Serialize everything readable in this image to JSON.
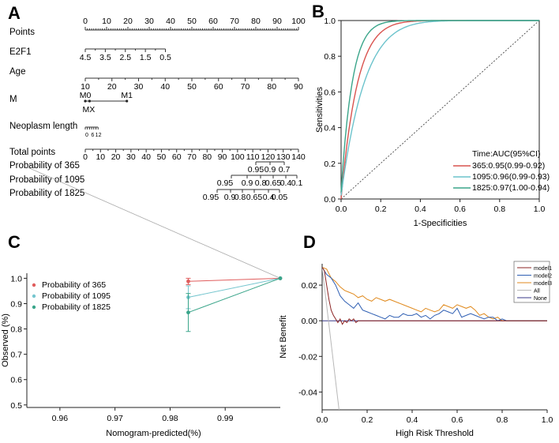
{
  "panels": {
    "a": "A",
    "b": "B",
    "c": "C",
    "d": "D"
  },
  "chart_data": [
    {
      "id": "A",
      "type": "table",
      "title": "Nomogram",
      "rows": [
        {
          "key": "points",
          "label": "Points",
          "ticks": [
            "0",
            "10",
            "20",
            "30",
            "40",
            "50",
            "60",
            "70",
            "80",
            "90",
            "100"
          ]
        },
        {
          "key": "e2f1",
          "label": "E2F1",
          "ticks": [
            "4.5",
            "3.5",
            "2.5",
            "1.5",
            "0.5"
          ]
        },
        {
          "key": "age",
          "label": "Age",
          "ticks": [
            "10",
            "20",
            "30",
            "40",
            "50",
            "60",
            "70",
            "80",
            "90"
          ]
        },
        {
          "key": "m",
          "label": "M",
          "ticks": [
            "M0",
            "M1",
            "MX"
          ]
        },
        {
          "key": "neo",
          "label": "Neoplasm length",
          "ticks": [
            "0",
            "6",
            "12"
          ]
        },
        {
          "key": "total",
          "label": "Total points",
          "ticks": [
            "0",
            "10",
            "20",
            "30",
            "40",
            "50",
            "60",
            "70",
            "80",
            "90",
            "100",
            "110",
            "120",
            "130",
            "140"
          ]
        },
        {
          "key": "p365",
          "label": "Probability of 365",
          "ticks": [
            "0.95",
            "0.9",
            "0.7"
          ]
        },
        {
          "key": "p1095",
          "label": "Probability of 1095",
          "ticks": [
            "0.95",
            "0.9",
            "0.8",
            "0.65",
            "0.4",
            "0.1"
          ]
        },
        {
          "key": "p1825",
          "label": "Probability of 1825",
          "ticks": [
            "0.95",
            "0.9",
            "0.8",
            "0.65",
            "0.4",
            "0.05"
          ]
        }
      ]
    },
    {
      "id": "B",
      "type": "line",
      "xlabel": "1-Specificities",
      "ylabel": "Sensitivities",
      "xlim": [
        0,
        1
      ],
      "ylim": [
        0,
        1
      ],
      "xticks": [
        "0.0",
        "0.2",
        "0.4",
        "0.6",
        "0.8",
        "1.0"
      ],
      "yticks": [
        "0.0",
        "0.2",
        "0.4",
        "0.6",
        "0.8",
        "1.0"
      ],
      "legend_title": "Time:AUC(95%CI)",
      "legend_position": "bottom-right",
      "series": [
        {
          "name": "365:0.95(0.99-0.92)",
          "color": "#d9534f",
          "k": 5.5
        },
        {
          "name": "1095:0.96(0.99-0.93)",
          "color": "#6cc3cc",
          "k": 3.8
        },
        {
          "name": "1825:0.97(1.00-0.94)",
          "color": "#3aa58a",
          "k": 8.0
        }
      ]
    },
    {
      "id": "C",
      "type": "line",
      "xlabel": "Nomogram-predicted(%)",
      "ylabel": "Observed (%)",
      "xlim": [
        0.954,
        1.0
      ],
      "ylim": [
        0.49,
        1.02
      ],
      "xticks": [
        "0.96",
        "0.97",
        "0.98",
        "0.99"
      ],
      "xtick_values": [
        0.96,
        0.97,
        0.98,
        0.99
      ],
      "yticks": [
        "0.5",
        "0.6",
        "0.7",
        "0.8",
        "0.9",
        "1.0"
      ],
      "ytick_values": [
        0.5,
        0.6,
        0.7,
        0.8,
        0.9,
        1.0
      ],
      "legend_position": "top-left",
      "series": [
        {
          "name": "Probability of 365",
          "color": "#e05d5d",
          "points": [
            [
              0.9833,
              0.988
            ],
            [
              1.0,
              1.0
            ]
          ],
          "err": [
            0.975,
            1.0
          ]
        },
        {
          "name": "Probability of 1095",
          "color": "#76c6cf",
          "points": [
            [
              0.9833,
              0.925
            ],
            [
              1.0,
              1.0
            ]
          ],
          "err": [
            0.88,
            0.97
          ]
        },
        {
          "name": "Probability of 1825",
          "color": "#3aa58a",
          "points": [
            [
              0.9833,
              0.865
            ],
            [
              1.0,
              1.0
            ]
          ],
          "err": [
            0.79,
            0.94
          ]
        }
      ]
    },
    {
      "id": "D",
      "type": "line",
      "xlabel": "High Risk Threshold",
      "ylabel": "Net  Benefit",
      "xlim": [
        0,
        1
      ],
      "ylim": [
        -0.05,
        0.032
      ],
      "xticks": [
        "0.0",
        "0.2",
        "0.4",
        "0.6",
        "0.8",
        "1.0"
      ],
      "xtick_values": [
        0,
        0.2,
        0.4,
        0.6,
        0.8,
        1.0
      ],
      "yticks": [
        "-0.04",
        "-0.02",
        "0.00",
        "0.02"
      ],
      "ytick_values": [
        -0.04,
        -0.02,
        0.0,
        0.02
      ],
      "legend_position": "top-right",
      "series": [
        {
          "name": "model1",
          "color": "#8b2323",
          "x": [
            0,
            0.01,
            0.02,
            0.03,
            0.04,
            0.05,
            0.06,
            0.07,
            0.08,
            0.09,
            0.1,
            0.11,
            0.12,
            0.13,
            0.14,
            0.15,
            0.16,
            0.17,
            0.18,
            0.2,
            0.25,
            0.3,
            0.4,
            0.5,
            0.6,
            0.7,
            0.8,
            1.0
          ],
          "y": [
            0.03,
            0.028,
            0.02,
            0.012,
            0.006,
            0.003,
            0.001,
            -0.001,
            0.001,
            -0.002,
            0.0,
            -0.001,
            0.001,
            0.0,
            0.001,
            -0.001,
            0.0,
            0.0,
            0.0,
            0.0,
            0.0,
            0.0,
            0.0,
            0.0,
            0.0,
            0.0,
            0.0,
            0.0
          ]
        },
        {
          "name": "model2",
          "color": "#2f5fb3",
          "x": [
            0,
            0.02,
            0.04,
            0.06,
            0.08,
            0.1,
            0.12,
            0.14,
            0.16,
            0.18,
            0.2,
            0.22,
            0.24,
            0.26,
            0.28,
            0.3,
            0.32,
            0.34,
            0.36,
            0.38,
            0.4,
            0.42,
            0.44,
            0.46,
            0.48,
            0.5,
            0.52,
            0.54,
            0.56,
            0.58,
            0.6,
            0.62,
            0.64,
            0.66,
            0.68,
            0.7,
            0.72,
            0.74,
            0.76,
            0.78,
            0.8,
            0.82,
            1.0
          ],
          "y": [
            0.03,
            0.026,
            0.024,
            0.02,
            0.014,
            0.011,
            0.009,
            0.007,
            0.01,
            0.006,
            0.005,
            0.004,
            0.003,
            0.002,
            0.001,
            0.003,
            0.002,
            0.002,
            0.004,
            0.003,
            0.003,
            0.004,
            0.002,
            0.003,
            0.001,
            0.003,
            0.004,
            0.006,
            0.005,
            0.004,
            0.007,
            0.002,
            0.003,
            0.004,
            0.003,
            0.002,
            0.001,
            0.002,
            0.002,
            0.0,
            0.001,
            0.0,
            0.0
          ]
        },
        {
          "name": "model3",
          "color": "#e08a1e",
          "x": [
            0,
            0.02,
            0.04,
            0.06,
            0.08,
            0.1,
            0.12,
            0.14,
            0.16,
            0.18,
            0.2,
            0.22,
            0.24,
            0.26,
            0.28,
            0.3,
            0.32,
            0.34,
            0.36,
            0.38,
            0.4,
            0.42,
            0.44,
            0.46,
            0.48,
            0.5,
            0.52,
            0.54,
            0.56,
            0.58,
            0.6,
            0.62,
            0.64,
            0.66,
            0.68,
            0.7,
            0.72,
            0.74,
            0.76,
            0.78,
            0.8,
            1.0
          ],
          "y": [
            0.03,
            0.029,
            0.024,
            0.022,
            0.019,
            0.017,
            0.016,
            0.015,
            0.013,
            0.014,
            0.012,
            0.011,
            0.013,
            0.012,
            0.011,
            0.012,
            0.011,
            0.01,
            0.009,
            0.008,
            0.007,
            0.006,
            0.005,
            0.007,
            0.006,
            0.005,
            0.006,
            0.009,
            0.008,
            0.007,
            0.009,
            0.008,
            0.007,
            0.008,
            0.006,
            0.003,
            0.004,
            0.002,
            0.001,
            0.002,
            0.0,
            0.0
          ]
        },
        {
          "name": "All",
          "color": "#b8b8b8",
          "x": [
            0,
            0.075
          ],
          "y": [
            0.03,
            -0.05
          ]
        },
        {
          "name": "None",
          "color": "#3a3a8a",
          "x": [
            0,
            1.0
          ],
          "y": [
            0.0,
            0.0
          ]
        }
      ]
    }
  ]
}
